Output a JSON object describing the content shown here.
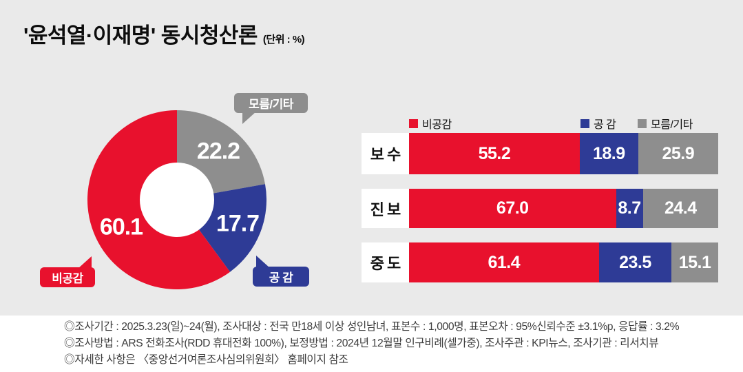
{
  "title": "'윤석열·이재명' 동시청산론",
  "unit": "(단위 : %)",
  "colors": {
    "red": "#e8112d",
    "blue": "#2e3b96",
    "gray": "#8e8e8e",
    "background": "#eaeaea",
    "panel_white": "#ffffff"
  },
  "chart_data": {
    "donut": {
      "type": "pie",
      "unit": "%",
      "start_angle_deg": 0,
      "direction": "clockwise",
      "segments": [
        {
          "label": "모름/기타",
          "value": 22.2,
          "color": "#8e8e8e"
        },
        {
          "label": "공 감",
          "value": 17.7,
          "color": "#2e3b96"
        },
        {
          "label": "비공감",
          "value": 60.1,
          "color": "#e8112d"
        }
      ]
    },
    "bars": {
      "type": "bar",
      "stacked": true,
      "orientation": "horizontal",
      "unit": "%",
      "xlim": [
        0,
        100
      ],
      "categories": [
        "보 수",
        "진 보",
        "중 도"
      ],
      "series": [
        {
          "name": "비공감",
          "color": "#e8112d",
          "values": [
            55.2,
            67.0,
            61.4
          ]
        },
        {
          "name": "공 감",
          "color": "#2e3b96",
          "values": [
            18.9,
            8.7,
            23.5
          ]
        },
        {
          "name": "모름/기타",
          "color": "#8e8e8e",
          "values": [
            25.9,
            24.4,
            15.1
          ]
        }
      ],
      "legend_position": "top"
    }
  },
  "footer": {
    "lines": [
      "◎조사기간 : 2025.3.23(일)~24(월), 조사대상 : 전국 만18세 이상 성인남녀, 표본수 : 1,000명, 표본오차 : 95%신뢰수준 ±3.1%p, 응답률 : 3.2%",
      "◎조사방법 : ARS 전화조사(RDD 휴대전화 100%), 보정방법 : 2024년 12월말 인구비례(셀가중), 조사주관 : KPI뉴스, 조사기관 : 리서치뷰",
      "◎자세한 사항은 〈중앙선거여론조사심의위원회〉 홈페이지 참조"
    ]
  }
}
